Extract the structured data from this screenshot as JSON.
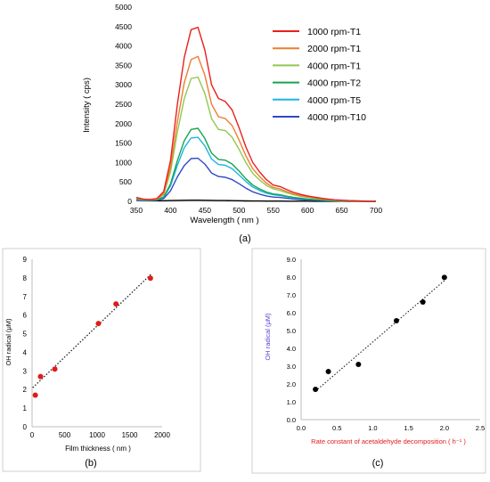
{
  "panels": {
    "a": "(a)",
    "b": "(b)",
    "c": "(c)"
  },
  "chart_data": [
    {
      "id": "a",
      "type": "line",
      "xlabel": "Wavelength ( nm )",
      "ylabel": "Intensity ( cps)",
      "xlim": [
        350,
        700
      ],
      "ylim": [
        0,
        5000
      ],
      "xticks": [
        350,
        400,
        450,
        500,
        550,
        600,
        650,
        700
      ],
      "yticks": [
        0,
        500,
        1000,
        1500,
        2000,
        2500,
        3000,
        3500,
        4000,
        4500,
        5000
      ],
      "legend_position": "top-right",
      "x": [
        350,
        360,
        370,
        380,
        390,
        400,
        410,
        420,
        430,
        440,
        450,
        460,
        470,
        480,
        490,
        500,
        510,
        520,
        530,
        540,
        550,
        560,
        570,
        580,
        590,
        600,
        610,
        620,
        630,
        640,
        650,
        660,
        670,
        680,
        690,
        700
      ],
      "series": [
        {
          "name": "1000 rpm-T1",
          "color": "#e8201c",
          "values": [
            100,
            60,
            50,
            70,
            250,
            1050,
            2500,
            3700,
            4420,
            4480,
            3900,
            3000,
            2650,
            2570,
            2350,
            1900,
            1400,
            1000,
            760,
            560,
            420,
            380,
            300,
            230,
            180,
            140,
            110,
            80,
            60,
            40,
            30,
            20,
            15,
            10,
            5,
            5
          ]
        },
        {
          "name": "2000 rpm-T1",
          "color": "#ee7d31",
          "values": [
            90,
            55,
            45,
            60,
            200,
            880,
            2050,
            3050,
            3650,
            3730,
            3250,
            2500,
            2180,
            2130,
            1950,
            1580,
            1170,
            840,
            640,
            470,
            360,
            320,
            250,
            190,
            150,
            120,
            90,
            70,
            50,
            35,
            25,
            15,
            10,
            8,
            5,
            5
          ]
        },
        {
          "name": "4000 rpm-T1",
          "color": "#92c84f",
          "values": [
            80,
            50,
            40,
            55,
            170,
            760,
            1780,
            2640,
            3160,
            3200,
            2780,
            2130,
            1850,
            1820,
            1650,
            1340,
            1000,
            720,
            550,
            410,
            320,
            280,
            220,
            170,
            130,
            100,
            80,
            60,
            45,
            30,
            20,
            15,
            10,
            6,
            4,
            3
          ]
        },
        {
          "name": "4000 rpm-T2",
          "color": "#16a352",
          "values": [
            60,
            40,
            30,
            45,
            110,
            450,
            1050,
            1560,
            1850,
            1880,
            1620,
            1240,
            1080,
            1060,
            960,
            780,
            580,
            420,
            320,
            240,
            190,
            170,
            130,
            100,
            80,
            60,
            48,
            36,
            26,
            18,
            12,
            8,
            6,
            4,
            3,
            2
          ]
        },
        {
          "name": "4000 rpm-T5",
          "color": "#1eb3e4",
          "values": [
            55,
            35,
            28,
            40,
            100,
            400,
            930,
            1380,
            1630,
            1650,
            1430,
            1090,
            950,
            930,
            840,
            680,
            510,
            370,
            280,
            210,
            170,
            150,
            115,
            90,
            70,
            54,
            42,
            32,
            23,
            16,
            11,
            7,
            5,
            4,
            3,
            2
          ]
        },
        {
          "name": "4000 rpm-T10",
          "color": "#3049c5",
          "values": [
            40,
            25,
            20,
            30,
            70,
            270,
            630,
            920,
            1100,
            1110,
            960,
            730,
            640,
            620,
            560,
            455,
            340,
            245,
            185,
            140,
            110,
            100,
            78,
            60,
            47,
            36,
            28,
            21,
            16,
            11,
            8,
            5,
            4,
            3,
            2,
            1
          ]
        },
        {
          "color": "#000000",
          "values": [
            30,
            20,
            15,
            15,
            15,
            20,
            25,
            28,
            30,
            30,
            28,
            25,
            20,
            20,
            18,
            15,
            12,
            10,
            10,
            8,
            8,
            6,
            5,
            5,
            4,
            4,
            3,
            3,
            2,
            2,
            2,
            1,
            1,
            1,
            1,
            1
          ]
        }
      ]
    },
    {
      "id": "b",
      "type": "scatter",
      "xlabel": "Film thickness ( nm )",
      "ylabel": "OH radical (μM)",
      "xlim": [
        0,
        2000
      ],
      "ylim": [
        0,
        9
      ],
      "xticks": [
        0,
        500,
        1000,
        1500,
        2000
      ],
      "yticks": [
        0,
        1,
        2,
        3,
        4,
        5,
        6,
        7,
        8,
        9
      ],
      "color": "#e01b1b",
      "x": [
        50,
        130,
        350,
        1020,
        1290,
        1820
      ],
      "y": [
        1.7,
        2.7,
        3.1,
        5.55,
        6.6,
        7.98
      ],
      "trendline": {
        "x": [
          10,
          1830
        ],
        "y": [
          2.1,
          8.2
        ]
      }
    },
    {
      "id": "c",
      "type": "scatter",
      "xlabel": "Rate constant of acetaldehyde decomposition ( h⁻¹ )",
      "ylabel": "OH radical (μM)",
      "xlim": [
        0,
        2.5
      ],
      "ylim": [
        0,
        9
      ],
      "xticks": [
        "0.0",
        "0.5",
        "1.0",
        "1.5",
        "2.0",
        "2.5"
      ],
      "yticks": [
        "0.0",
        "1.0",
        "2.0",
        "3.0",
        "4.0",
        "5.0",
        "6.0",
        "7.0",
        "8.0",
        "9.0"
      ],
      "xlabel_color": "#e01b1b",
      "ylabel_color": "#5b3fd3",
      "color": "#000000",
      "x": [
        0.2,
        0.38,
        0.8,
        1.33,
        1.7,
        2.0
      ],
      "y": [
        1.7,
        2.7,
        3.1,
        5.55,
        6.6,
        7.98
      ],
      "trendline": {
        "x": [
          0.2,
          2.0
        ],
        "y": [
          1.6,
          7.8
        ]
      }
    }
  ]
}
